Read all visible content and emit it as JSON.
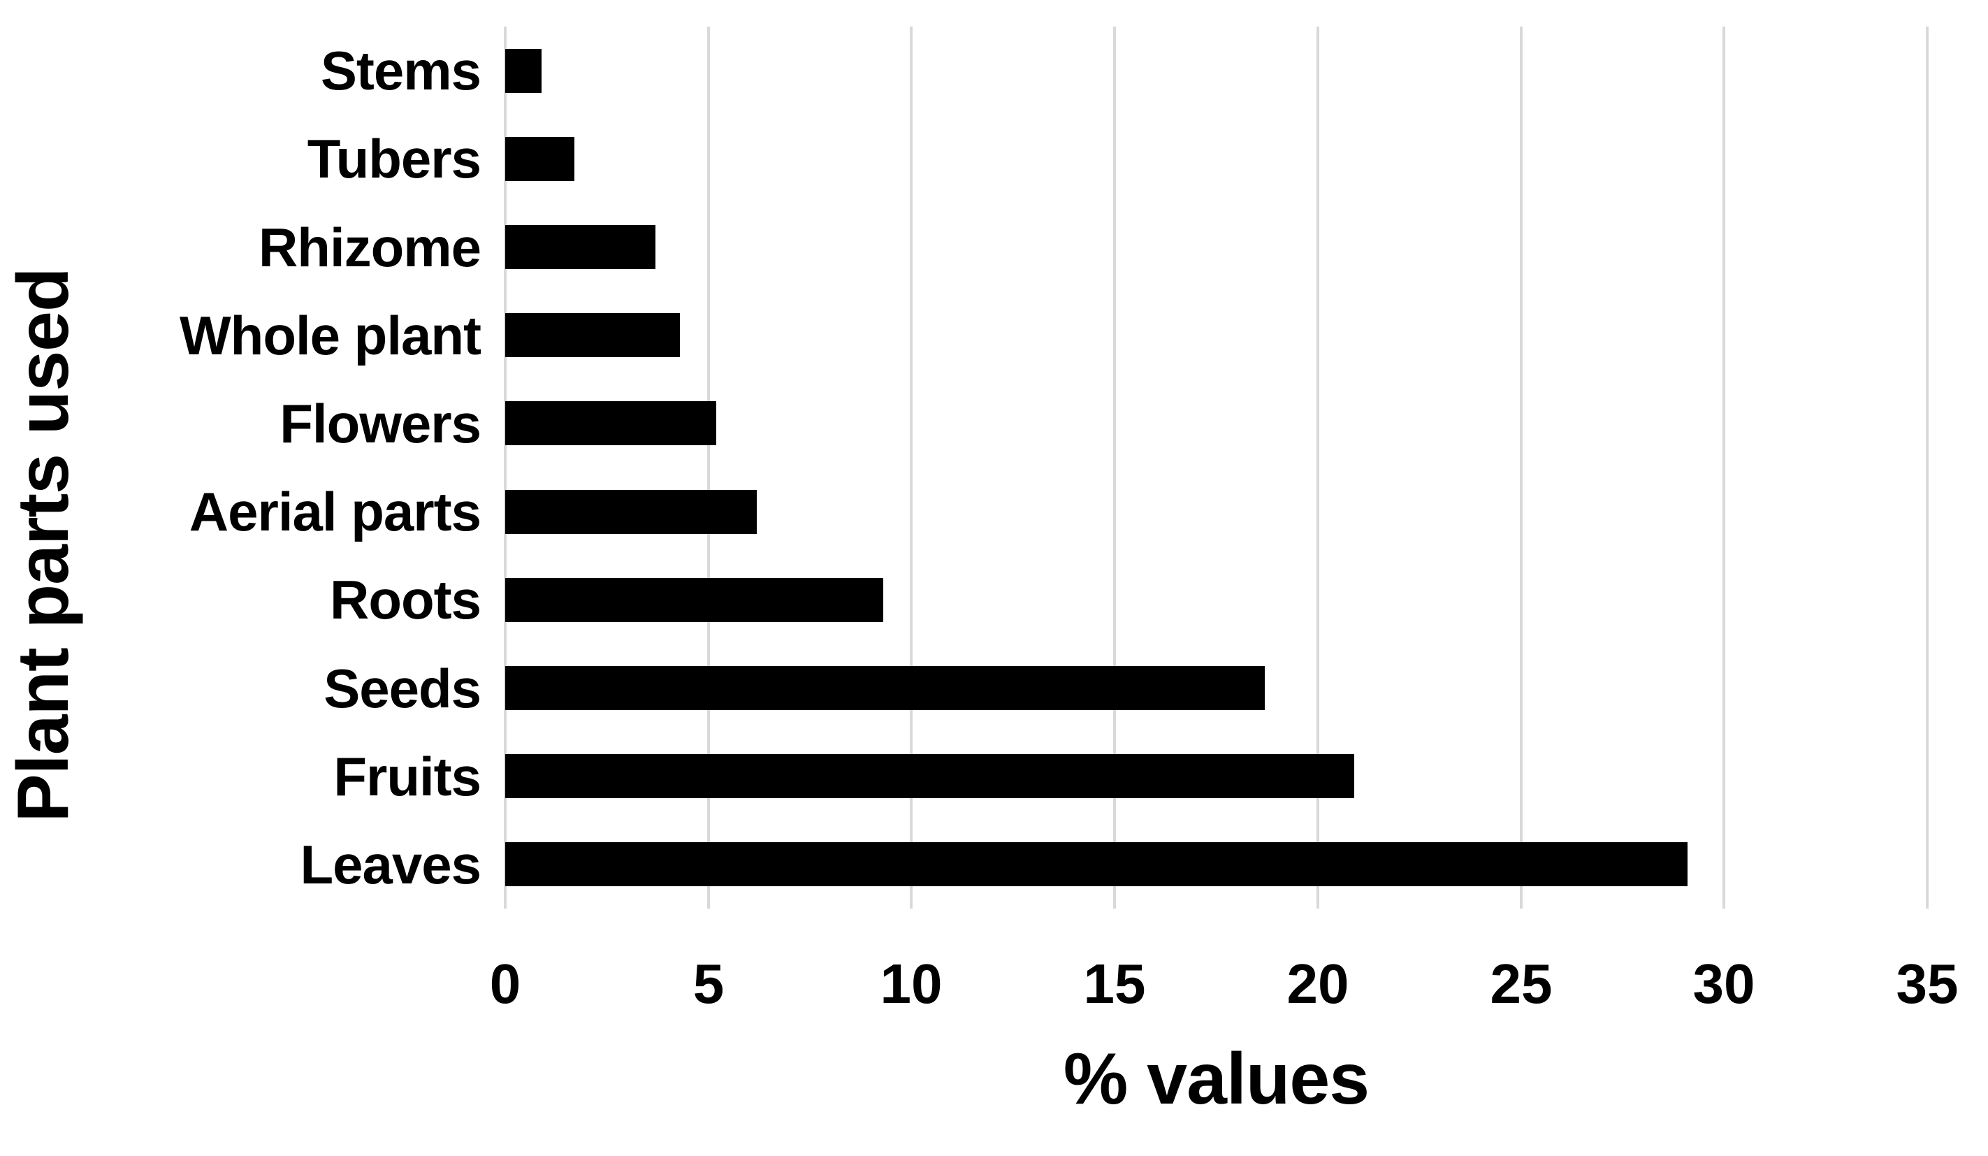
{
  "chart_data": {
    "type": "bar",
    "orientation": "horizontal",
    "title": "",
    "xlabel": "% values",
    "ylabel": "Plant parts used",
    "categories": [
      "Stems",
      "Tubers",
      "Rhizome",
      "Whole plant",
      "Flowers",
      "Aerial parts",
      "Roots",
      "Seeds",
      "Fruits",
      "Leaves"
    ],
    "values": [
      0.9,
      1.7,
      3.7,
      4.3,
      5.2,
      6.2,
      9.3,
      18.7,
      20.9,
      29.1
    ],
    "xlim": [
      0,
      35
    ],
    "xticks": [
      0,
      5,
      10,
      15,
      20,
      25,
      30,
      35
    ],
    "grid": "vertical-gridlines",
    "legend": "none",
    "bar_color": "#000000",
    "gridline_color": "#d9d9d9",
    "text_color": "#000000",
    "background_color": "#ffffff"
  }
}
